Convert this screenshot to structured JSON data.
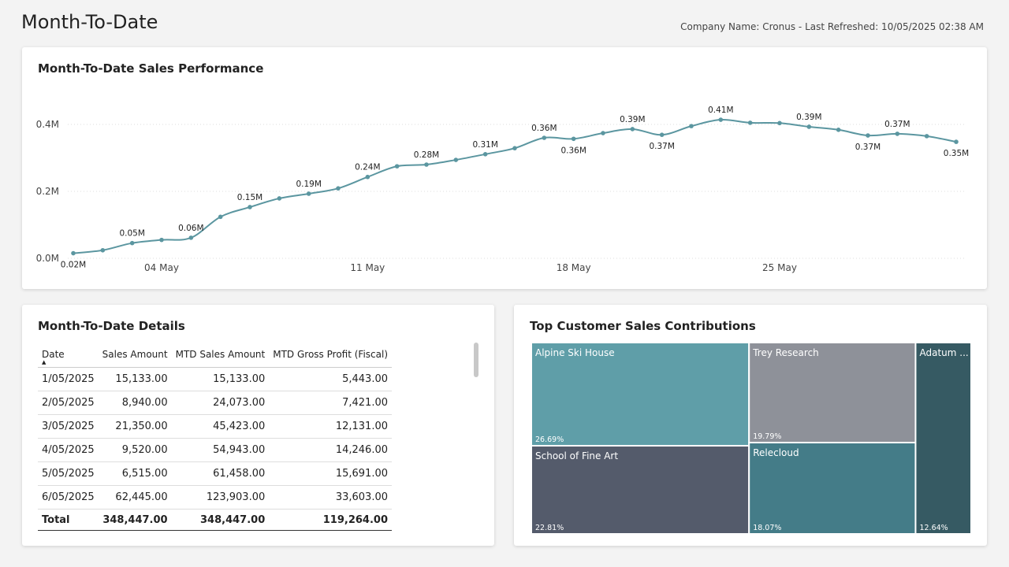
{
  "header": {
    "title": "Month-To-Date",
    "info": "Company Name: Cronus - Last Refreshed: 10/05/2025 02:38 AM"
  },
  "chart_data": [
    {
      "type": "line",
      "title": "Month-To-Date Sales Performance",
      "x": [
        "01 May",
        "02 May",
        "03 May",
        "04 May",
        "05 May",
        "06 May",
        "07 May",
        "08 May",
        "09 May",
        "10 May",
        "11 May",
        "12 May",
        "13 May",
        "14 May",
        "15 May",
        "16 May",
        "17 May",
        "18 May",
        "19 May",
        "20 May",
        "21 May",
        "22 May",
        "23 May",
        "24 May",
        "25 May",
        "26 May",
        "27 May",
        "28 May",
        "29 May",
        "30 May",
        "31 May"
      ],
      "xticks": [
        "04 May",
        "11 May",
        "18 May",
        "25 May"
      ],
      "values": [
        15133,
        24073,
        45423,
        54943,
        61458,
        123903,
        153000,
        179000,
        193000,
        209000,
        243000,
        275000,
        280000,
        294000,
        311000,
        329000,
        360000,
        357000,
        374000,
        386000,
        369000,
        395000,
        414000,
        405000,
        404000,
        393000,
        384000,
        367000,
        372000,
        365000,
        348000
      ],
      "value_labels": [
        "0.02M",
        null,
        "0.05M",
        null,
        "0.06M",
        null,
        "0.15M",
        null,
        "0.19M",
        null,
        "0.24M",
        null,
        "0.28M",
        null,
        "0.31M",
        null,
        "0.36M",
        "0.36M",
        null,
        "0.39M",
        "0.37M",
        null,
        "0.41M",
        null,
        null,
        "0.39M",
        null,
        "0.37M",
        "0.37M",
        null,
        "0.35M"
      ],
      "color": "#5b96a0",
      "ylim": [
        0,
        450000
      ],
      "yticks": [
        {
          "value": 0,
          "label": "0.0M"
        },
        {
          "value": 200000,
          "label": "0.2M"
        },
        {
          "value": 400000,
          "label": "0.4M"
        }
      ],
      "grid": true
    },
    {
      "type": "treemap",
      "title": "Top Customer Sales Contributions",
      "categories": [
        "Alpine Ski House",
        "School of Fine Art",
        "Trey Research",
        "Relecloud",
        "Adatum ..."
      ],
      "values": [
        26.69,
        22.81,
        19.79,
        18.07,
        12.64
      ],
      "value_labels": [
        "26.69%",
        "22.81%",
        "19.79%",
        "18.07%",
        "12.64%"
      ],
      "colors": [
        "#5f9ea8",
        "#545b6b",
        "#8e9199",
        "#447c88",
        "#365a63"
      ]
    }
  ],
  "table": {
    "title": "Month-To-Date Details",
    "columns": [
      "Date",
      "Sales Amount",
      "MTD Sales Amount",
      "MTD Gross Profit (Fiscal)"
    ],
    "rows": [
      [
        "1/05/2025",
        "15,133.00",
        "15,133.00",
        "5,443.00"
      ],
      [
        "2/05/2025",
        "8,940.00",
        "24,073.00",
        "7,421.00"
      ],
      [
        "3/05/2025",
        "21,350.00",
        "45,423.00",
        "12,131.00"
      ],
      [
        "4/05/2025",
        "9,520.00",
        "54,943.00",
        "14,246.00"
      ],
      [
        "5/05/2025",
        "6,515.00",
        "61,458.00",
        "15,691.00"
      ],
      [
        "6/05/2025",
        "62,445.00",
        "123,903.00",
        "33,603.00"
      ]
    ],
    "total": [
      "Total",
      "348,447.00",
      "348,447.00",
      "119,264.00"
    ]
  }
}
